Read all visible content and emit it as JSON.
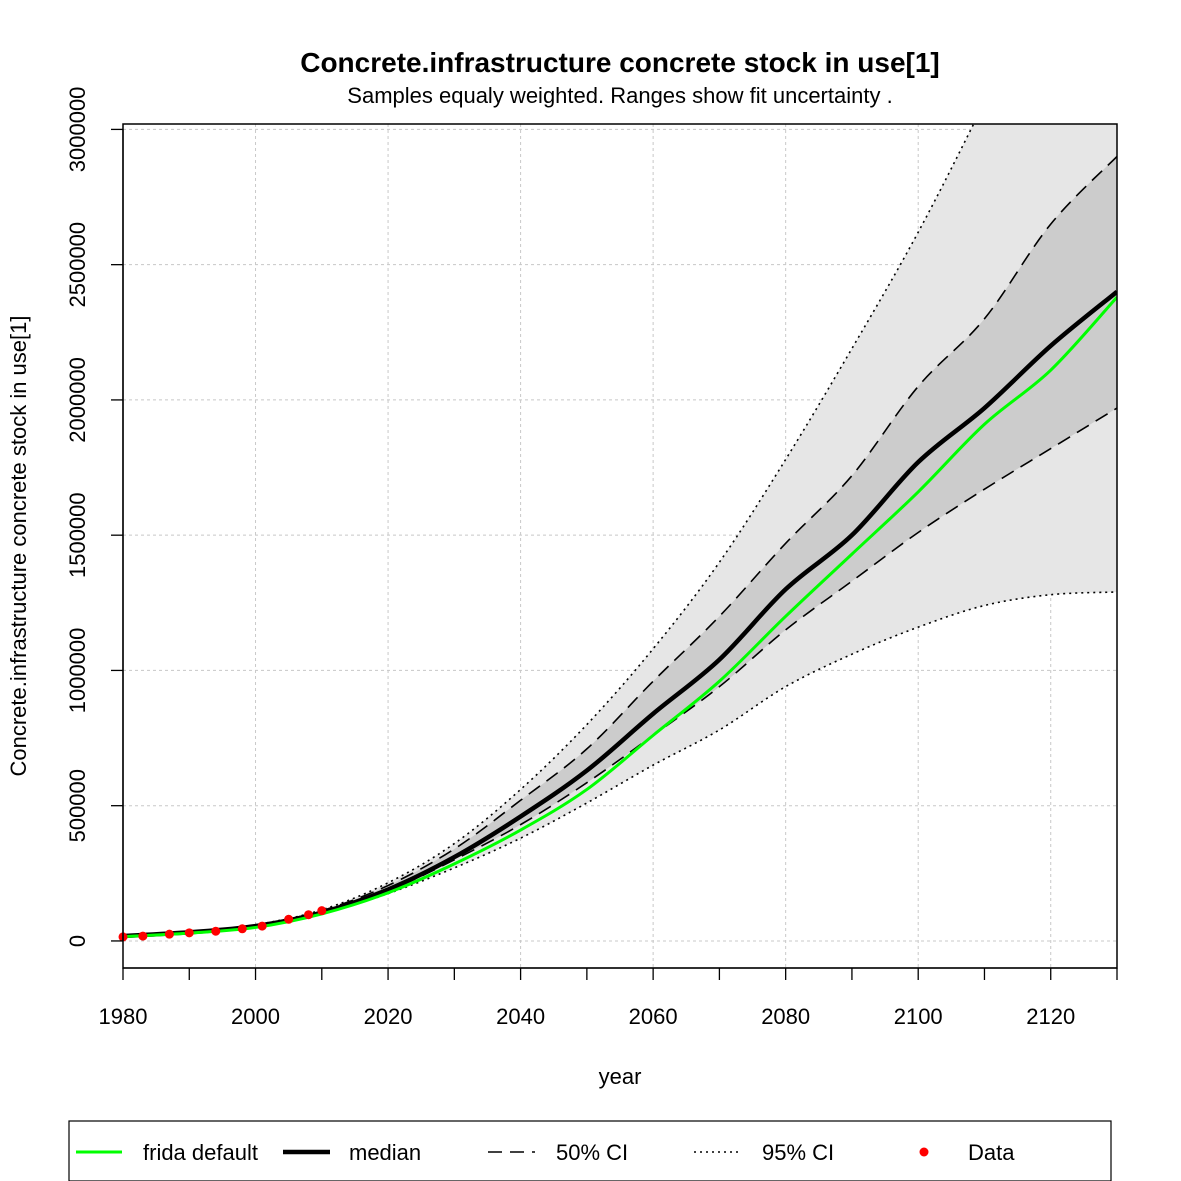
{
  "chart_data": {
    "type": "line",
    "title": "Concrete.infrastructure concrete stock in use[1]",
    "subtitle": "Samples equaly weighted. Ranges show  fit uncertainty .",
    "xlabel": "year",
    "ylabel": "Concrete.infrastructure concrete stock in use[1]",
    "xlim": [
      1980,
      2130
    ],
    "ylim": [
      -100000,
      3020000
    ],
    "x_ticks": [
      1980,
      2000,
      2020,
      2040,
      2060,
      2080,
      2100,
      2120
    ],
    "y_ticks": [
      0,
      500000,
      1000000,
      1500000,
      2000000,
      2500000,
      3000000
    ],
    "x_tick_labels": [
      "1980",
      "2000",
      "2020",
      "2040",
      "2060",
      "2080",
      "2100",
      "2120"
    ],
    "y_tick_labels": [
      "0",
      "500000",
      "1000000",
      "1500000",
      "2000000",
      "2500000",
      "3000000"
    ],
    "grid": true,
    "legend_position": "bottom",
    "x": [
      1980,
      1990,
      2000,
      2010,
      2020,
      2030,
      2040,
      2050,
      2060,
      2070,
      2080,
      2090,
      2100,
      2110,
      2120,
      2130
    ],
    "bands": [
      {
        "name": "95% CI",
        "fill": "#e6e6e6",
        "lower": [
          17000,
          30000,
          50000,
          100000,
          175000,
          270000,
          380000,
          510000,
          650000,
          780000,
          940000,
          1060000,
          1160000,
          1240000,
          1280000,
          1290000
        ],
        "upper": [
          20000,
          35000,
          60000,
          115000,
          215000,
          360000,
          560000,
          800000,
          1080000,
          1400000,
          1780000,
          2190000,
          2620000,
          3100000,
          3600000,
          4100000
        ]
      },
      {
        "name": "50% CI",
        "fill": "#cccccc",
        "lower": [
          17000,
          32000,
          55000,
          105000,
          185000,
          300000,
          430000,
          585000,
          760000,
          940000,
          1150000,
          1330000,
          1510000,
          1670000,
          1820000,
          1970000
        ],
        "upper": [
          19000,
          34000,
          58000,
          112000,
          205000,
          340000,
          520000,
          710000,
          960000,
          1200000,
          1470000,
          1720000,
          2050000,
          2300000,
          2650000,
          2900000
        ]
      }
    ],
    "series": [
      {
        "name": "frida default",
        "color": "#00ff00",
        "style": "solid",
        "values": [
          16000,
          29000,
          50000,
          100000,
          178000,
          285000,
          410000,
          560000,
          760000,
          960000,
          1200000,
          1430000,
          1660000,
          1910000,
          2110000,
          2380000
        ]
      },
      {
        "name": "median",
        "color": "#000000",
        "style": "solid-thick",
        "values": [
          18000,
          32000,
          55000,
          105000,
          190000,
          310000,
          460000,
          630000,
          840000,
          1040000,
          1300000,
          1500000,
          1770000,
          1970000,
          2200000,
          2400000
        ]
      },
      {
        "name": "50% CI",
        "color": "#000000",
        "style": "dashed",
        "lower_ref": "50% CI"
      },
      {
        "name": "95% CI",
        "color": "#000000",
        "style": "dotted",
        "lower_ref": "95% CI"
      }
    ],
    "data_points": {
      "name": "Data",
      "color": "#ff0000",
      "x": [
        1980,
        1983,
        1987,
        1990,
        1994,
        1998,
        2001,
        2005,
        2008,
        2010
      ],
      "y": [
        15000,
        18000,
        25000,
        30000,
        36000,
        45000,
        55000,
        80000,
        97000,
        112000
      ]
    },
    "legend": [
      {
        "label": "frida default",
        "color": "#00ff00",
        "style": "solid"
      },
      {
        "label": "median",
        "color": "#000000",
        "style": "solid-thick"
      },
      {
        "label": "50% CI",
        "color": "#000000",
        "style": "dashed"
      },
      {
        "label": "95% CI",
        "color": "#000000",
        "style": "dotted"
      },
      {
        "label": "Data",
        "color": "#ff0000",
        "style": "point"
      }
    ]
  }
}
